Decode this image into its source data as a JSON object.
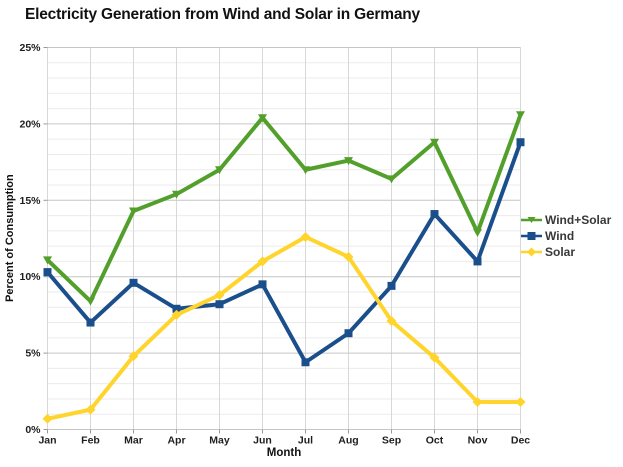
{
  "title": "Electricity Generation from Wind and Solar in Germany",
  "colors": {
    "wind_solar": "#52a02b",
    "wind": "#1b4f8c",
    "solar": "#ffd42c",
    "grid_minor": "#ebebeb",
    "grid_vertical": "#d8d8d8",
    "grid_major": "#c6c6c6",
    "tick": "#999999",
    "text": "#1e1e1e"
  },
  "chart_data": {
    "type": "line",
    "title": "Electricity Generation from Wind and Solar in Germany",
    "xlabel": "Month",
    "ylabel": "Percent of Consumption",
    "categories": [
      "Jan",
      "Feb",
      "Mar",
      "Apr",
      "May",
      "Jun",
      "Jul",
      "Aug",
      "Sep",
      "Oct",
      "Nov",
      "Dec"
    ],
    "series": [
      {
        "name": "Wind+Solar",
        "color": "#52a02b",
        "marker": "triangle-down",
        "values": [
          11.1,
          8.4,
          14.3,
          15.4,
          17.0,
          20.4,
          17.0,
          17.6,
          16.4,
          18.8,
          12.9,
          20.6
        ]
      },
      {
        "name": "Wind",
        "color": "#1b4f8c",
        "marker": "square",
        "values": [
          10.3,
          7.0,
          9.6,
          7.9,
          8.2,
          9.5,
          4.4,
          6.3,
          9.4,
          14.1,
          11.0,
          18.8
        ]
      },
      {
        "name": "Solar",
        "color": "#ffd42c",
        "marker": "diamond",
        "values": [
          0.7,
          1.3,
          4.8,
          7.5,
          8.8,
          11.0,
          12.6,
          11.3,
          7.1,
          4.7,
          1.8,
          1.8
        ]
      }
    ],
    "ylim": [
      0,
      25
    ],
    "ytick_major_step": 5,
    "ytick_minor_step": 1,
    "y_tick_labels": [
      "0%",
      "5%",
      "10%",
      "15%",
      "20%",
      "25%"
    ],
    "grid": true,
    "legend_position": "right"
  }
}
